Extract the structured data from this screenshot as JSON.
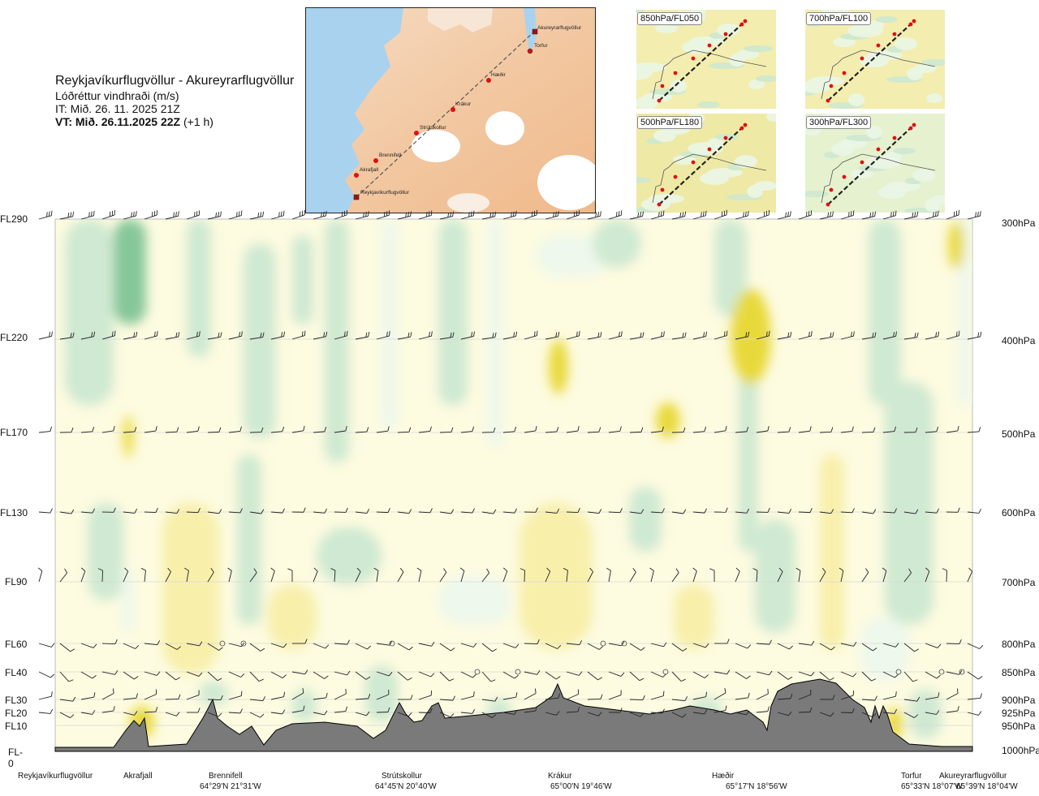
{
  "header": {
    "route": "Reykjavíkurflugvöllur - Akureyrarflugvöllur",
    "variable": "Lóðréttur vindhraði (m/s)",
    "it": "IT: Mið. 26. 11. 2025 21Z",
    "vt_bold": "VT: Mið. 26.11.2025 22Z",
    "vt_extra": " (+1 h)"
  },
  "map": {
    "points": [
      "Akureyrarflugvöllur",
      "Torfur",
      "Hæðir",
      "Krákur",
      "Strútskollur",
      "Brennifell",
      "Akrafjall",
      "Reykjavíkurflugvöllur"
    ]
  },
  "thumbnails": [
    {
      "label": "850hPa/FL050"
    },
    {
      "label": "700hPa/FL100"
    },
    {
      "label": "500hPa/FL180"
    },
    {
      "label": "300hPa/FL300"
    }
  ],
  "chart_data": {
    "type": "heatmap",
    "title": "Reykjavíkurflugvöllur - Akureyrarflugvöllur",
    "variable": "Lóðréttur vindhraði (m/s)",
    "y_left_ticks": [
      "FL290",
      "FL220",
      "FL170",
      "FL130",
      "FL90",
      "FL60",
      "FL40",
      "FL30",
      "FL20",
      "FL10",
      "FL-0"
    ],
    "y_right_ticks": [
      "300hPa",
      "400hPa",
      "500hPa",
      "600hPa",
      "700hPa",
      "800hPa",
      "850hPa",
      "900hPa",
      "925hPa",
      "950hPa",
      "1000hPa"
    ],
    "y_levels_hpa": [
      300,
      400,
      500,
      600,
      700,
      800,
      850,
      900,
      925,
      950,
      1000
    ],
    "x_points": [
      {
        "name": "Reykjavíkurflugvöllur",
        "coord": ""
      },
      {
        "name": "Akrafjall",
        "coord": ""
      },
      {
        "name": "Brennifell",
        "coord": "64°29'N 21°31'W"
      },
      {
        "name": "Strútskollur",
        "coord": "64°45'N 20°40'W"
      },
      {
        "name": "Krákur",
        "coord": "65°00'N 19°46'W"
      },
      {
        "name": "Hæðir",
        "coord": "65°17'N 18°56'W"
      },
      {
        "name": "Torfur",
        "coord": "65°33'N 18°07'W"
      },
      {
        "name": "Akureyrarflugvöllur",
        "coord": "65°39'N 18°04'W"
      }
    ],
    "colors": {
      "strong_down": "#86c79a",
      "down": "#cfe9d2",
      "weak_down": "#eef8ec",
      "neutral": "#fdfbe0",
      "weak_up": "#f8efaa",
      "up": "#f1e67e",
      "strong_up": "#e8d93a",
      "terrain": "#7a7a7a"
    }
  }
}
